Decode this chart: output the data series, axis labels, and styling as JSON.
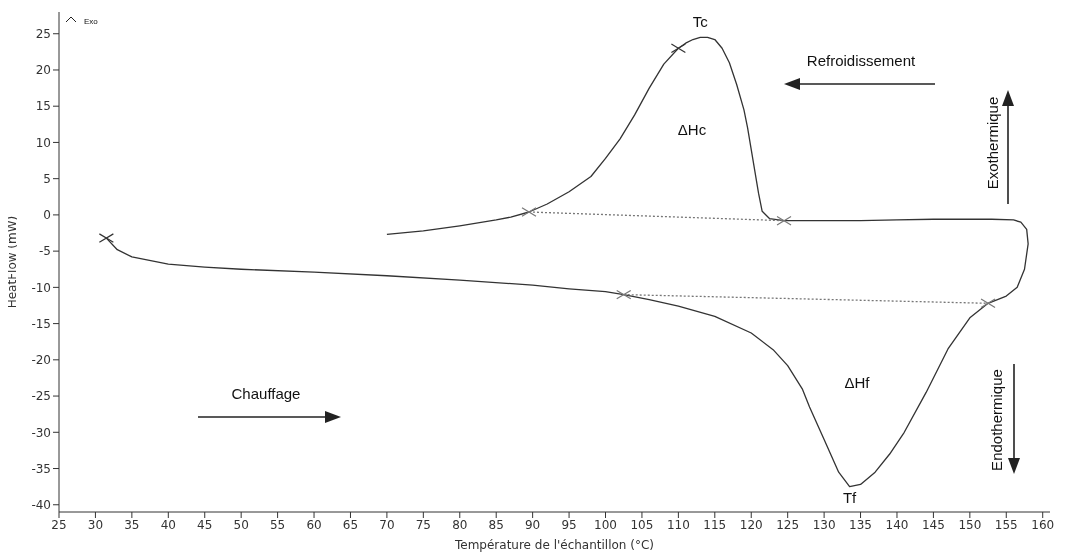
{
  "chart_data": {
    "type": "line",
    "xlabel": "Température de l'échantillon (°C)",
    "ylabel": "HeatFlow (mW)",
    "xlim": [
      25,
      161
    ],
    "ylim": [
      -41,
      28
    ],
    "xticks": [
      25,
      30,
      35,
      40,
      45,
      50,
      55,
      60,
      65,
      70,
      75,
      80,
      85,
      90,
      95,
      100,
      105,
      110,
      115,
      120,
      125,
      130,
      135,
      140,
      145,
      150,
      155,
      160
    ],
    "yticks": [
      -40,
      -35,
      -30,
      -25,
      -20,
      -15,
      -10,
      -5,
      0,
      5,
      10,
      15,
      20,
      25
    ],
    "grid": false,
    "legend": false,
    "series": [
      {
        "color": "#333333",
        "line_style": "solid",
        "x": [
          31.5,
          33,
          35,
          40,
          45,
          50,
          60,
          70,
          80,
          90,
          95,
          100,
          102.5,
          106,
          110,
          115,
          120,
          123,
          125,
          127,
          128,
          130,
          132,
          133.5,
          135,
          137,
          139,
          141,
          144,
          147,
          150,
          152.5,
          155,
          156.5,
          157.5,
          158,
          157.8,
          157,
          156,
          153,
          150,
          145,
          140,
          135,
          130,
          126,
          124.5,
          122.5,
          121.5,
          121,
          120.5,
          120,
          119.5,
          119,
          118,
          117,
          116,
          115,
          114,
          113,
          112,
          111,
          110,
          108,
          106,
          104,
          102,
          100,
          98,
          95,
          92,
          89.5,
          87,
          85,
          80,
          75,
          70
        ],
        "values": [
          -3.2,
          -4.8,
          -5.8,
          -6.8,
          -7.2,
          -7.5,
          -7.9,
          -8.4,
          -9,
          -9.7,
          -10.2,
          -10.6,
          -11,
          -11.7,
          -12.6,
          -14,
          -16.3,
          -18.6,
          -20.8,
          -24,
          -26.5,
          -31,
          -35.5,
          -37.5,
          -37.2,
          -35.5,
          -33,
          -30,
          -24.5,
          -18.5,
          -14.2,
          -12.2,
          -11.2,
          -10,
          -7.5,
          -4,
          -2,
          -1,
          -0.7,
          -0.6,
          -0.6,
          -0.6,
          -0.7,
          -0.8,
          -0.8,
          -0.8,
          -0.8,
          -0.5,
          0.5,
          3,
          6,
          9,
          12,
          14.5,
          18,
          21,
          23,
          24.2,
          24.5,
          24.5,
          24.2,
          23.7,
          23,
          20.8,
          17.5,
          13.8,
          10.5,
          7.8,
          5.3,
          3.2,
          1.5,
          0.4,
          -0.3,
          -0.7,
          -1.5,
          -2.2,
          -2.7
        ]
      },
      {
        "color": "#777777",
        "line_style": "dotted",
        "marker": "cross",
        "x": [
          89.5,
          124.5
        ],
        "values": [
          0.4,
          -0.8
        ]
      },
      {
        "color": "#777777",
        "line_style": "dotted",
        "marker": "cross",
        "x": [
          102.5,
          152.5
        ],
        "values": [
          -11,
          -12.2
        ]
      },
      {
        "type": "scatter",
        "color": "#333333",
        "marker": "cross",
        "x": [
          31.5,
          110
        ],
        "values": [
          -3.2,
          23
        ]
      }
    ],
    "annotations": [
      "Exo",
      "Refroidissement",
      "Chauffage",
      "Exothermique",
      "Endothermique",
      "ΔHc",
      "ΔHf",
      {
        "text": "Tc",
        "x": 113,
        "y": 24.5
      },
      {
        "text": "Tf",
        "x": 133.5,
        "y": -37.5
      }
    ]
  }
}
